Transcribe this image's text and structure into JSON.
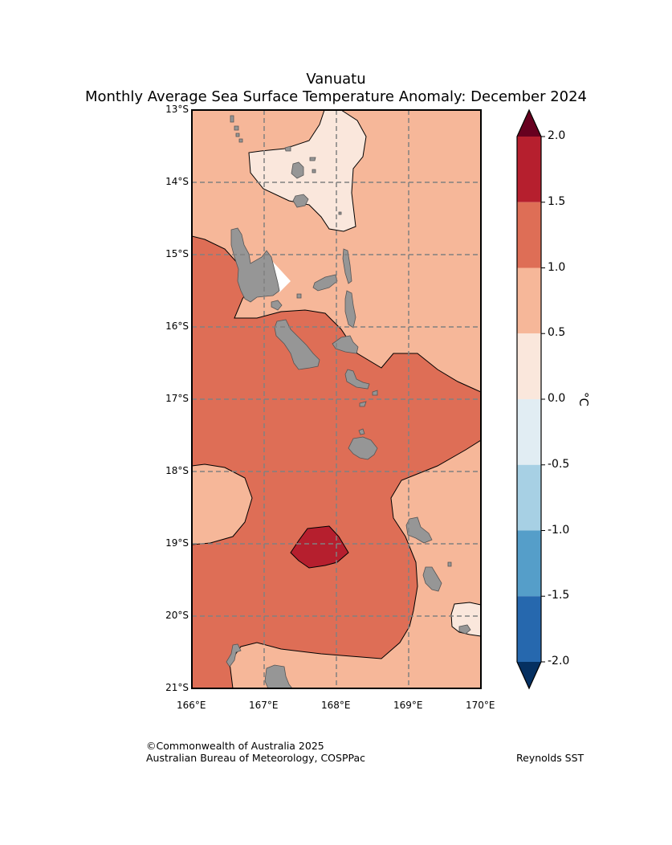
{
  "title": "Vanuatu",
  "subtitle": "Monthly Average Sea Surface Temperature Anomaly: December 2024",
  "map": {
    "lon_range": [
      166,
      170
    ],
    "lat_range": [
      -21,
      -13
    ],
    "lon_ticks": [
      "166°E",
      "167°E",
      "168°E",
      "169°E",
      "170°E"
    ],
    "lat_ticks": [
      "13°S",
      "14°S",
      "15°S",
      "16°S",
      "17°S",
      "18°S",
      "19°S",
      "20°S",
      "21°S"
    ],
    "gridlines": true,
    "land_color": "#969696"
  },
  "colorbar": {
    "label": "°C",
    "ticks": [
      "2.0",
      "1.5",
      "1.0",
      "0.5",
      "0.0",
      "-0.5",
      "-1.0",
      "-1.5",
      "-2.0"
    ],
    "bins": [
      {
        "range": [
          1.5,
          2.0
        ],
        "color": "#b61f2e"
      },
      {
        "range": [
          1.0,
          1.5
        ],
        "color": "#de6e56"
      },
      {
        "range": [
          0.5,
          1.0
        ],
        "color": "#f6b799"
      },
      {
        "range": [
          0.0,
          0.5
        ],
        "color": "#fae7dc"
      },
      {
        "range": [
          -0.5,
          0.0
        ],
        "color": "#e1edf3"
      },
      {
        "range": [
          -1.0,
          -0.5
        ],
        "color": "#a7d0e4"
      },
      {
        "range": [
          -1.5,
          -1.0
        ],
        "color": "#559ec9"
      },
      {
        "range": [
          -2.0,
          -1.5
        ],
        "color": "#2668ae"
      }
    ],
    "over_color": "#67001f",
    "under_color": "#053061"
  },
  "footer": {
    "copyright": "©Commonwealth of Australia 2025",
    "agency": "Australian Bureau of Meteorology, COSPPac",
    "source": "Reynolds SST"
  }
}
